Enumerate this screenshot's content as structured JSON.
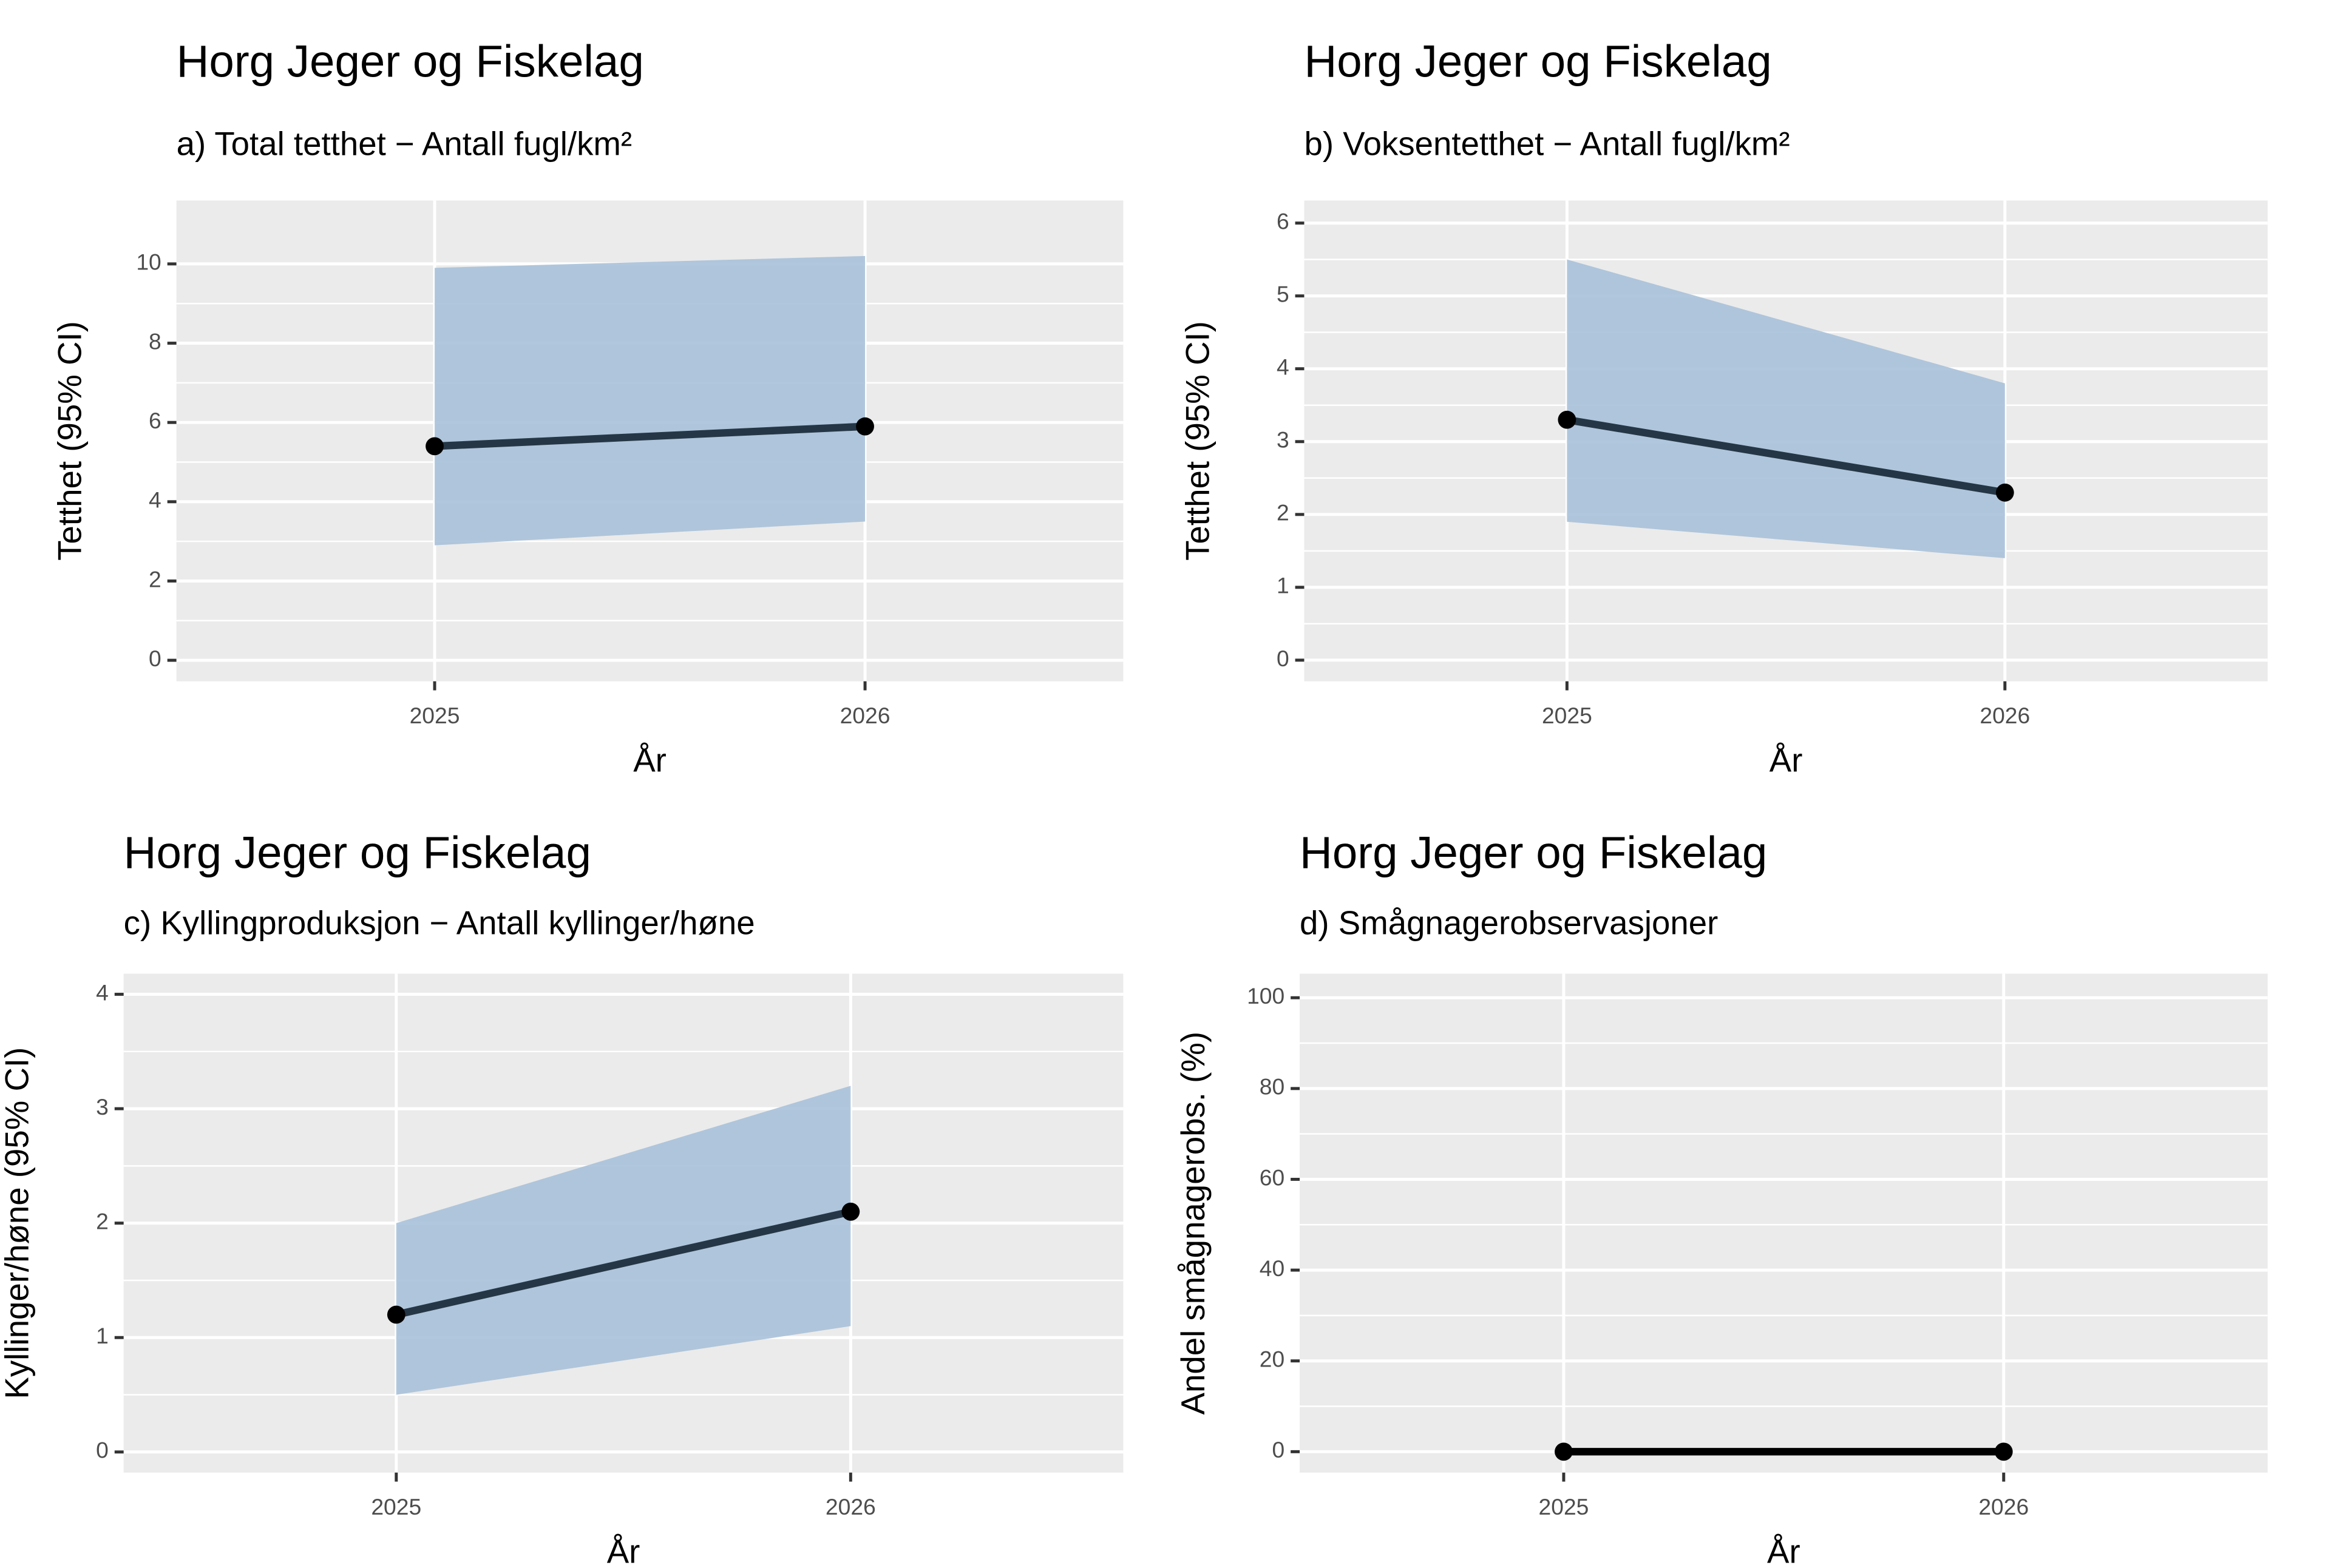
{
  "chart_data": [
    {
      "type": "line",
      "title": "Horg Jeger og Fiskelag",
      "subtitle": "a) Total tetthet − Antall fugl/km²",
      "x_label": "År",
      "y_label": "Tetthet (95% CI)",
      "x": [
        2025,
        2026
      ],
      "values": [
        5.4,
        5.9
      ],
      "lower": [
        2.9,
        3.5
      ],
      "upper": [
        9.9,
        10.2
      ],
      "line_color": "#253746",
      "ribbon_color": "#a9c1d9",
      "xlim": [
        2024.4,
        2026.6
      ],
      "xticks": [
        2025,
        2026
      ],
      "ylim": [
        -0.53,
        11.6
      ],
      "yticks": [
        0,
        2,
        4,
        6,
        8,
        10
      ],
      "grid": true
    },
    {
      "type": "line",
      "title": "Horg Jeger og Fiskelag",
      "subtitle": "b) Voksentetthet − Antall fugl/km²",
      "x_label": "År",
      "y_label": "Tetthet (95% CI)",
      "x": [
        2025,
        2026
      ],
      "values": [
        3.3,
        2.3
      ],
      "lower": [
        1.9,
        1.4
      ],
      "upper": [
        5.5,
        3.8
      ],
      "line_color": "#253746",
      "ribbon_color": "#a9c1d9",
      "xlim": [
        2024.4,
        2026.6
      ],
      "xticks": [
        2025,
        2026
      ],
      "ylim": [
        -0.29,
        6.31
      ],
      "yticks": [
        0,
        1,
        2,
        3,
        4,
        5,
        6
      ],
      "grid": true
    },
    {
      "type": "line",
      "title": "Horg Jeger og Fiskelag",
      "subtitle": "c) Kyllingproduksjon − Antall kyllinger/høne",
      "x_label": "År",
      "y_label": "Kyllinger/høne (95% CI)",
      "x": [
        2025,
        2026
      ],
      "values": [
        1.2,
        2.1
      ],
      "lower": [
        0.5,
        1.1
      ],
      "upper": [
        2.0,
        3.2
      ],
      "line_color": "#253746",
      "ribbon_color": "#a9c1d9",
      "xlim": [
        2024.4,
        2026.6
      ],
      "xticks": [
        2025,
        2026
      ],
      "ylim": [
        -0.18,
        4.18
      ],
      "yticks": [
        0,
        1,
        2,
        3,
        4
      ],
      "grid": true
    },
    {
      "type": "line",
      "title": "Horg Jeger og Fiskelag",
      "subtitle": "d) Smågnagerobservasjoner",
      "x_label": "År",
      "y_label": "Andel smågnagerobs. (%)",
      "x": [
        2025,
        2026
      ],
      "values": [
        0,
        0
      ],
      "line_color": "#000000",
      "xlim": [
        2024.4,
        2026.6
      ],
      "xticks": [
        2025,
        2026
      ],
      "ylim": [
        -4.6,
        105.3
      ],
      "yticks": [
        0,
        20,
        40,
        60,
        80,
        100
      ],
      "grid": true
    }
  ]
}
